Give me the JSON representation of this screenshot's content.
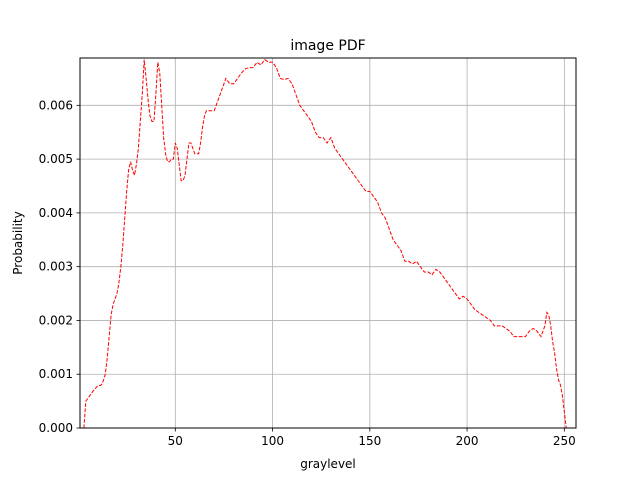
{
  "chart_data": {
    "type": "line",
    "title": "image PDF",
    "xlabel": "graylevel",
    "ylabel": "Probability",
    "xlim": [
      1,
      256
    ],
    "ylim": [
      0,
      0.00688
    ],
    "xticks": [
      50,
      100,
      150,
      200,
      250
    ],
    "xtick_labels": [
      "50",
      "100",
      "150",
      "200",
      "250"
    ],
    "yticks": [
      0,
      0.001,
      0.002,
      0.003,
      0.004,
      0.005,
      0.006
    ],
    "ytick_labels": [
      "0.000",
      "0.001",
      "0.002",
      "0.003",
      "0.004",
      "0.005",
      "0.006"
    ],
    "grid": true,
    "line_color": "#ff0000",
    "line_style": "dashed",
    "series": [
      {
        "x": [
          3,
          4,
          6,
          8,
          10,
          12,
          13,
          14,
          15,
          16,
          17,
          18,
          19,
          20,
          21,
          22,
          23,
          24,
          25,
          26,
          27,
          28,
          29,
          30,
          31,
          32,
          33,
          34,
          35,
          36,
          37,
          38,
          39,
          40,
          41,
          42,
          43,
          44,
          45,
          46,
          47,
          48,
          49,
          50,
          51,
          52,
          53,
          54,
          55,
          56,
          57,
          58,
          59,
          60,
          61,
          62,
          63,
          64,
          65,
          66,
          67,
          68,
          70,
          72,
          74,
          76,
          78,
          80,
          82,
          84,
          86,
          88,
          90,
          92,
          94,
          96,
          98,
          100,
          102,
          104,
          106,
          108,
          110,
          112,
          114,
          116,
          118,
          120,
          122,
          124,
          126,
          128,
          130,
          132,
          134,
          136,
          138,
          140,
          142,
          144,
          146,
          148,
          150,
          152,
          154,
          156,
          158,
          160,
          162,
          164,
          166,
          168,
          170,
          172,
          174,
          176,
          178,
          180,
          182,
          184,
          186,
          188,
          190,
          192,
          194,
          196,
          198,
          200,
          202,
          204,
          206,
          208,
          210,
          212,
          214,
          216,
          218,
          220,
          222,
          224,
          226,
          228,
          230,
          232,
          234,
          236,
          238,
          240,
          241,
          242,
          243,
          244,
          245,
          246,
          247,
          248,
          249,
          250,
          251
        ],
        "y": [
          0.0,
          0.0005,
          0.0006,
          0.0007,
          0.00078,
          0.0008,
          0.00088,
          0.001,
          0.0013,
          0.0017,
          0.0021,
          0.0023,
          0.0024,
          0.0025,
          0.0027,
          0.003,
          0.0034,
          0.0039,
          0.0044,
          0.0048,
          0.00495,
          0.0048,
          0.0047,
          0.0049,
          0.0052,
          0.0057,
          0.0062,
          0.00685,
          0.0065,
          0.0061,
          0.0058,
          0.0057,
          0.0057,
          0.0062,
          0.0068,
          0.0066,
          0.006,
          0.0054,
          0.0051,
          0.00495,
          0.00495,
          0.005,
          0.005,
          0.0053,
          0.0052,
          0.0049,
          0.0046,
          0.0046,
          0.0047,
          0.005,
          0.0053,
          0.0053,
          0.0052,
          0.0051,
          0.0051,
          0.0051,
          0.0053,
          0.0056,
          0.0058,
          0.0059,
          0.0059,
          0.0059,
          0.0059,
          0.0061,
          0.0063,
          0.0065,
          0.0064,
          0.0064,
          0.0065,
          0.0066,
          0.00668,
          0.0067,
          0.0067,
          0.0068,
          0.00675,
          0.00685,
          0.0068,
          0.0068,
          0.0067,
          0.0065,
          0.00648,
          0.0065,
          0.0064,
          0.0062,
          0.006,
          0.0059,
          0.0058,
          0.0057,
          0.0055,
          0.0054,
          0.0054,
          0.0053,
          0.0054,
          0.0052,
          0.0051,
          0.005,
          0.0049,
          0.0048,
          0.0047,
          0.0046,
          0.0045,
          0.0044,
          0.0044,
          0.0043,
          0.0042,
          0.004,
          0.0039,
          0.0037,
          0.0035,
          0.0034,
          0.0033,
          0.0031,
          0.0031,
          0.00305,
          0.0031,
          0.003,
          0.0029,
          0.0029,
          0.00285,
          0.00295,
          0.0029,
          0.0028,
          0.0027,
          0.0026,
          0.0025,
          0.0024,
          0.00245,
          0.0024,
          0.0023,
          0.0022,
          0.00215,
          0.0021,
          0.00205,
          0.002,
          0.0019,
          0.0019,
          0.0019,
          0.00185,
          0.0018,
          0.0017,
          0.0017,
          0.0017,
          0.0017,
          0.0018,
          0.00185,
          0.0018,
          0.0017,
          0.0019,
          0.00215,
          0.0021,
          0.0019,
          0.0016,
          0.0014,
          0.0011,
          0.0009,
          0.0008,
          0.0006,
          0.0003,
          0.0
        ]
      }
    ]
  }
}
